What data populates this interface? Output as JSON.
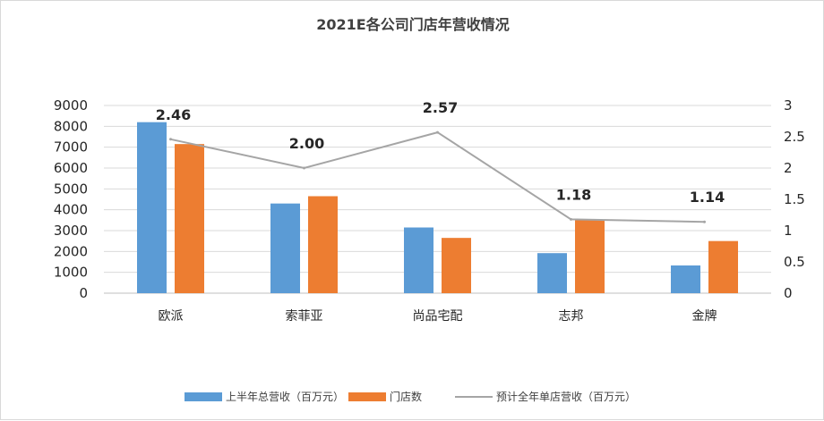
{
  "chart_data": {
    "type": "bar",
    "title": "2021E各公司门店年营收情况",
    "categories": [
      "欧派",
      "索菲亚",
      "尚品宅配",
      "志邦",
      "金牌"
    ],
    "series": [
      {
        "name": "上半年总营收（百万元）",
        "kind": "bar",
        "axis": "left",
        "color": "#5b9bd5",
        "values": [
          8200,
          4300,
          3150,
          1920,
          1330
        ]
      },
      {
        "name": "门店数",
        "kind": "bar",
        "axis": "left",
        "color": "#ed7d31",
        "values": [
          7150,
          4650,
          2650,
          3500,
          2500
        ]
      },
      {
        "name": "预计全年单店营收（百万元）",
        "kind": "line",
        "axis": "right",
        "color": "#a5a5a5",
        "values": [
          2.46,
          2.0,
          2.57,
          1.18,
          1.14
        ],
        "labels": [
          "2.46",
          "2.00",
          "2.57",
          "1.18",
          "1.14"
        ]
      }
    ],
    "y_left": {
      "min": 0,
      "max": 9000,
      "ticks": [
        "0",
        "1000",
        "2000",
        "3000",
        "4000",
        "5000",
        "6000",
        "7000",
        "8000",
        "9000"
      ]
    },
    "y_right": {
      "min": 0,
      "max": 3,
      "ticks": [
        "0",
        "0.5",
        "1",
        "1.5",
        "2",
        "2.5",
        "3"
      ]
    },
    "legend_position": "bottom"
  }
}
